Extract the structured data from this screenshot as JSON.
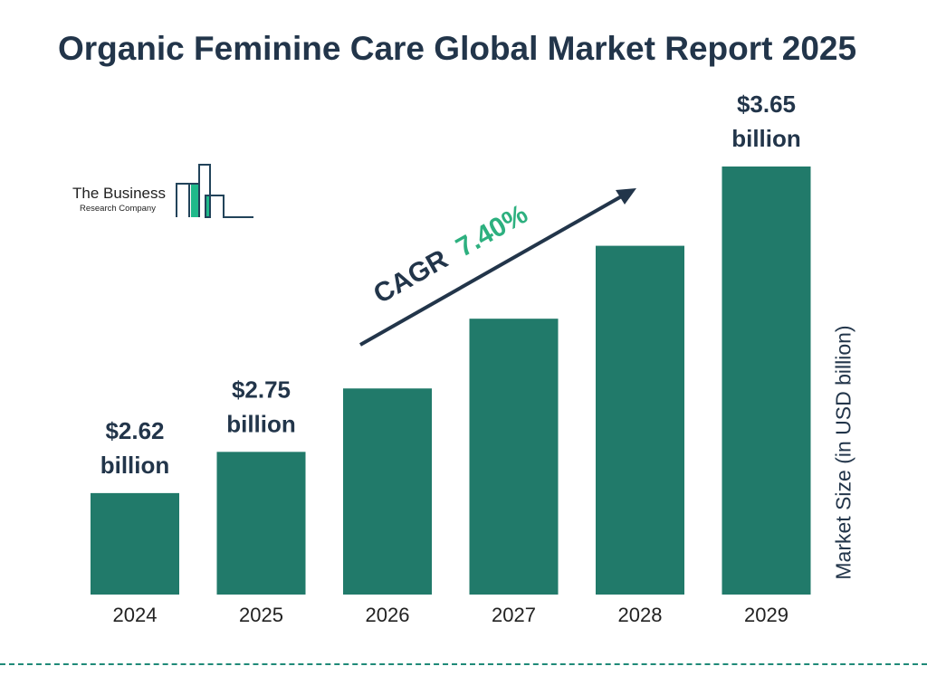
{
  "title": "Organic Feminine Care Global Market Report 2025",
  "logo": {
    "line1": "The Business",
    "line2": "Research Company"
  },
  "colors": {
    "bar": "#217a6a",
    "title": "#22354a",
    "cagr_value": "#2db07f",
    "logo_accent": "#1fb98a"
  },
  "cagr": {
    "label": "CAGR",
    "value": "7.40%"
  },
  "chart_data": {
    "type": "bar",
    "title": "Organic Feminine Care Global Market Report 2025",
    "categories": [
      "2024",
      "2025",
      "2026",
      "2027",
      "2028",
      "2029"
    ],
    "values": [
      2.62,
      2.75,
      2.95,
      3.17,
      3.4,
      3.65
    ],
    "data_labels": [
      {
        "category": "2024",
        "line1": "$2.62",
        "line2": "billion"
      },
      {
        "category": "2025",
        "line1": "$2.75",
        "line2": "billion"
      },
      {
        "category": "2029",
        "line1": "$3.65",
        "line2": "billion"
      }
    ],
    "xlabel": "",
    "ylabel": "Market Size (in USD billion)",
    "ylim": [
      2.3,
      3.65
    ],
    "grid": false,
    "legend": "none"
  }
}
